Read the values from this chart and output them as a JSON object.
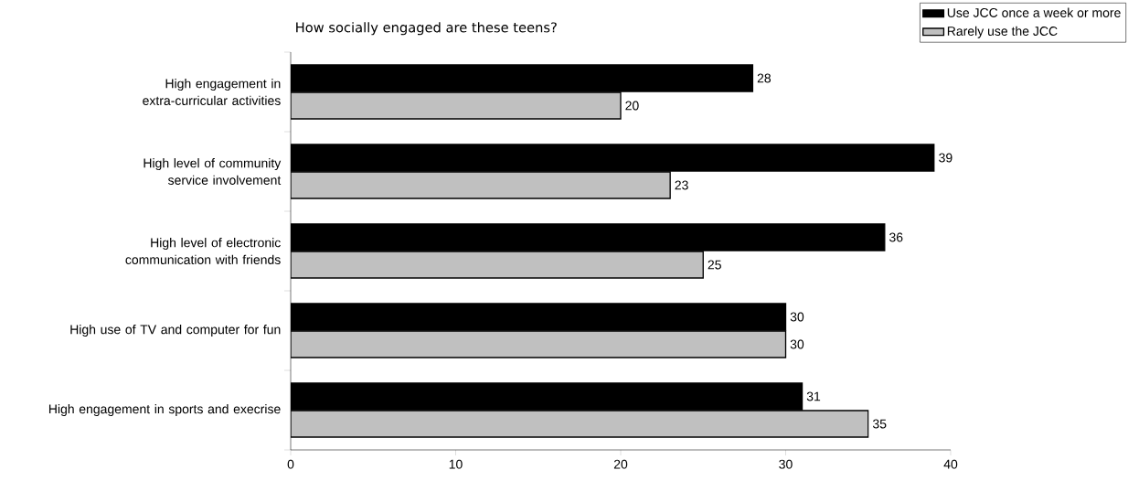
{
  "chart_data": {
    "type": "bar",
    "orientation": "horizontal",
    "title": "How socially engaged are these teens?",
    "categories": [
      "High engagement in extra-curricular activities",
      "High level of community service involvement",
      "High level of electronic communication with friends",
      "High use of TV and computer for fun",
      "High engagement in sports and execrise"
    ],
    "series": [
      {
        "name": "Use JCC once a week or more",
        "color": "#000000",
        "values": [
          28,
          39,
          36,
          30,
          31
        ]
      },
      {
        "name": "Rarely use the JCC",
        "color": "#c0c0c0",
        "values": [
          20,
          23,
          25,
          30,
          35
        ]
      }
    ],
    "xlim": [
      0,
      40
    ],
    "xticks": [
      0,
      10,
      20,
      30,
      40
    ],
    "data_labels": true,
    "legend": "top right"
  }
}
